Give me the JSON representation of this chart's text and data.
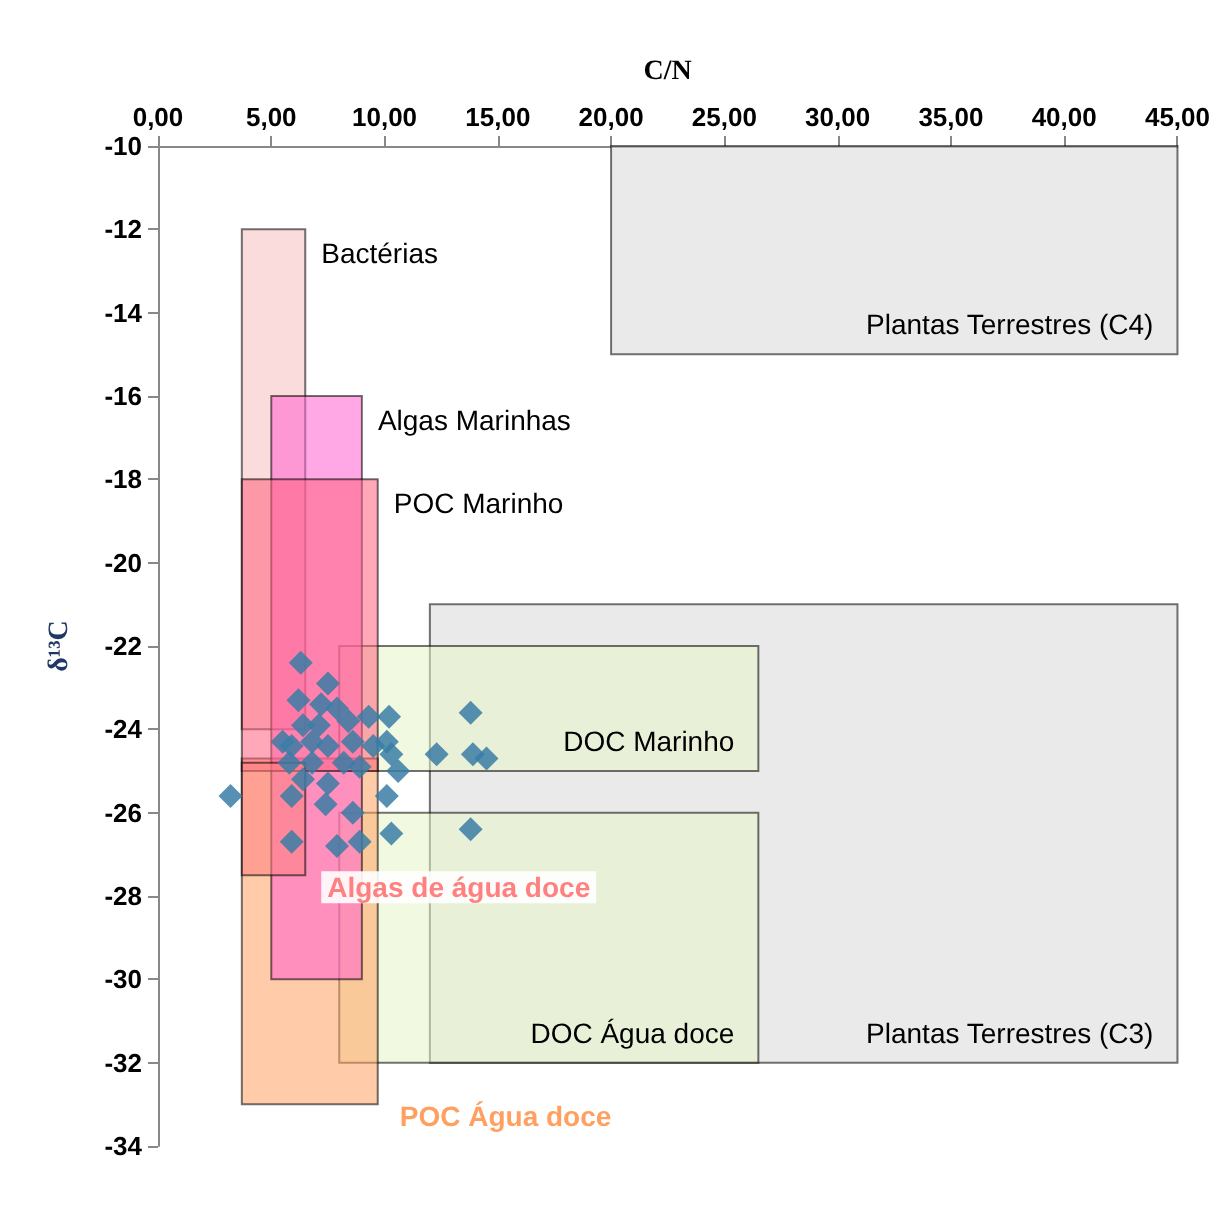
{
  "chart_data": {
    "type": "scatter",
    "xlabel": "C/N",
    "ylabel": "δ¹³C",
    "xlim": [
      0,
      45
    ],
    "xticks": [
      {
        "value": 0,
        "label": "0,00"
      },
      {
        "value": 5,
        "label": "5,00"
      },
      {
        "value": 10,
        "label": "10,00"
      },
      {
        "value": 15,
        "label": "15,00"
      },
      {
        "value": 20,
        "label": "20,00"
      },
      {
        "value": 25,
        "label": "25,00"
      },
      {
        "value": 30,
        "label": "30,00"
      },
      {
        "value": 35,
        "label": "35,00"
      },
      {
        "value": 40,
        "label": "40,00"
      },
      {
        "value": 45,
        "label": "45,00"
      }
    ],
    "ylim": [
      -34,
      -10
    ],
    "yticks": [
      -34,
      -32,
      -30,
      -28,
      -26,
      -24,
      -22,
      -20,
      -18,
      -16,
      -14,
      -12,
      -10
    ],
    "grid": false,
    "marker": "diamond",
    "series": [
      {
        "type": "area",
        "marker": "none",
        "name": "Plantas Terrestres (C4)",
        "color": "#d9d9d9",
        "x": [
          20,
          45,
          45,
          20,
          20
        ],
        "values": [
          -10,
          -10,
          -15,
          -15,
          -10
        ]
      },
      {
        "type": "area",
        "marker": "none",
        "name": "Plantas Terrestres (C3)",
        "color": "#d9d9d9",
        "x": [
          12,
          45,
          45,
          12,
          12
        ],
        "values": [
          -21,
          -21,
          -32,
          -32,
          -21
        ]
      },
      {
        "type": "area",
        "marker": "none",
        "name": "DOC Marinho",
        "color": "#e6f5c8",
        "x": [
          8,
          26.5,
          26.5,
          8,
          8
        ],
        "values": [
          -22,
          -22,
          -25,
          -25,
          -22
        ]
      },
      {
        "type": "area",
        "marker": "none",
        "name": "DOC Água doce",
        "color": "#e6f5c8",
        "x": [
          8,
          26.5,
          26.5,
          8,
          8
        ],
        "values": [
          -26,
          -26,
          -32,
          -32,
          -26
        ]
      },
      {
        "type": "area",
        "marker": "none",
        "name": "POC Água doce",
        "color": "#ffa060",
        "x": [
          3.7,
          9.7,
          9.7,
          3.7,
          3.7
        ],
        "values": [
          -24.7,
          -24.7,
          -33,
          -33,
          -24.7
        ]
      },
      {
        "type": "area",
        "marker": "none",
        "name": "Bactérias",
        "color": "#f8c0c0",
        "x": [
          3.7,
          6.5,
          6.5,
          3.7,
          3.7
        ],
        "values": [
          -12,
          -12,
          -24,
          -24,
          -12
        ]
      },
      {
        "type": "area",
        "marker": "none",
        "name": "Algas Marinhas",
        "color": "#ff60d0",
        "x": [
          5,
          9,
          9,
          5,
          5
        ],
        "values": [
          -16,
          -16,
          -30,
          -30,
          -16
        ]
      },
      {
        "type": "area",
        "marker": "none",
        "name": "POC Marinho",
        "color": "#ff6080",
        "x": [
          3.7,
          9.7,
          9.7,
          3.7,
          3.7
        ],
        "values": [
          -18,
          -18,
          -25,
          -25,
          -18
        ]
      },
      {
        "type": "area",
        "marker": "none",
        "name": "Algas de água doce",
        "color": "#ff8080",
        "x": [
          3.7,
          6.5,
          6.5,
          3.7,
          3.7
        ],
        "values": [
          -24.8,
          -24.8,
          -27.5,
          -27.5,
          -24.8
        ]
      },
      {
        "color": "#3a7ca5",
        "x": [
          6.3,
          7.5,
          6.2,
          7.2,
          7.9,
          6.4,
          7.1,
          8.4,
          9.3,
          10.2,
          13.8,
          5.5,
          5.9,
          6.8,
          7.5,
          8.6,
          9.5,
          10.1,
          10.3,
          12.3,
          13.9,
          14.5,
          10.6,
          5.8,
          6.8,
          8.2,
          8.9,
          10.1,
          6.4,
          7.5,
          5.9,
          7.4,
          8.6,
          10.3,
          13.8,
          5.9,
          7.9,
          8.9,
          3.2
        ],
        "values": [
          -22.4,
          -22.9,
          -23.3,
          -23.4,
          -23.5,
          -23.9,
          -23.9,
          -23.8,
          -23.7,
          -23.7,
          -23.6,
          -24.3,
          -24.4,
          -24.3,
          -24.4,
          -24.3,
          -24.4,
          -24.3,
          -24.6,
          -24.6,
          -24.6,
          -24.7,
          -25.0,
          -24.8,
          -24.8,
          -24.8,
          -24.9,
          -25.6,
          -25.2,
          -25.3,
          -25.6,
          -25.8,
          -26.0,
          -26.5,
          -26.4,
          -26.7,
          -26.8,
          -26.7,
          -25.6
        ]
      }
    ]
  }
}
